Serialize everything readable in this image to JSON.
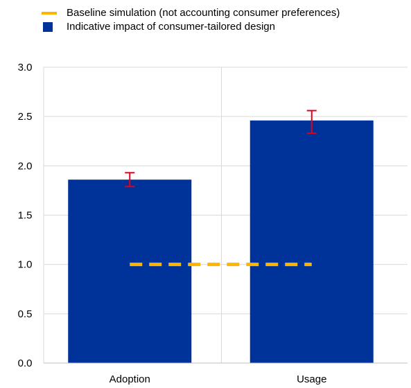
{
  "chart_data": {
    "type": "bar",
    "categories": [
      "Adoption",
      "Usage"
    ],
    "series": [
      {
        "name": "Indicative impact of consumer-tailored design",
        "values": [
          1.86,
          2.46
        ],
        "error_low": [
          1.79,
          2.33
        ],
        "error_high": [
          1.93,
          2.56
        ]
      },
      {
        "name": "Baseline simulation (not accounting consumer preferences)",
        "values": [
          1.0,
          1.0
        ],
        "style": "dashed-line"
      }
    ],
    "y_ticks": [
      "3.0",
      "2.5",
      "2.0",
      "1.5",
      "1.0",
      "0.5",
      "0.0"
    ],
    "ylim": [
      0,
      3
    ],
    "grid": true,
    "legend": "top",
    "colors": {
      "bar": "#003399",
      "baseline": "#FFB400",
      "error_bar": "#E3001B",
      "grid": "#D9D9D9"
    }
  },
  "legend": {
    "baseline_label": "Baseline simulation (not accounting consumer preferences)",
    "impact_label": "Indicative impact of consumer-tailored design"
  }
}
